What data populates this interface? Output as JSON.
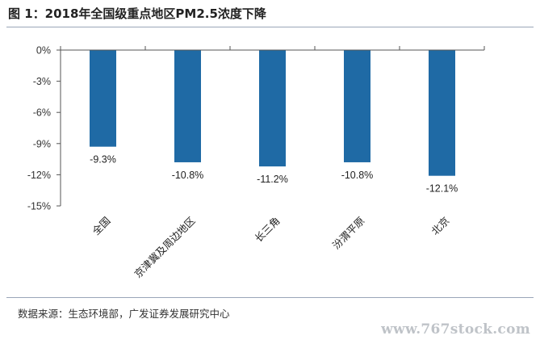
{
  "figure": {
    "title": "图 1：2018年全国级重点地区PM2.5浓度下降",
    "source": "数据来源：生态环境部，广发证券发展研究中心",
    "watermark": "www.767stock.com"
  },
  "colors": {
    "bar": "#1f6aa5",
    "axis": "#555555",
    "rule": "#9aa6b8"
  },
  "chart_data": {
    "type": "bar",
    "title": "2018年全国级重点地区PM2.5浓度下降",
    "xlabel": "",
    "ylabel": "",
    "categories": [
      "全国",
      "京津冀及周边地区",
      "长三角",
      "汾渭平原",
      "北京"
    ],
    "values": [
      -9.3,
      -10.8,
      -11.2,
      -10.8,
      -12.1
    ],
    "value_labels": [
      "-9.3%",
      "-10.8%",
      "-11.2%",
      "-10.8%",
      "-12.1%"
    ],
    "ylim": [
      -15,
      0
    ],
    "yticks": [
      0,
      -3,
      -6,
      -9,
      -12,
      -15
    ],
    "ytick_labels": [
      "0%",
      "-3%",
      "-6%",
      "-9%",
      "-12%",
      "-15%"
    ],
    "grid": false,
    "legend": "none"
  }
}
